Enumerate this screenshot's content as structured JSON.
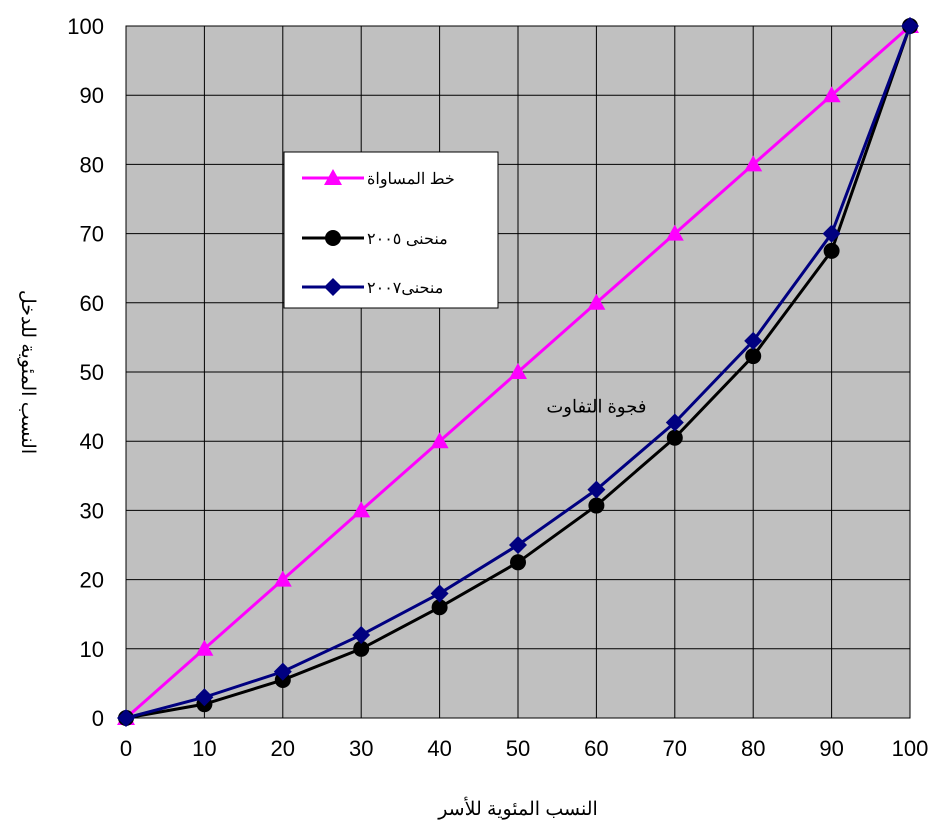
{
  "chart_data": {
    "type": "line",
    "title": "",
    "xlabel": "النسب المئوية للأسر",
    "ylabel": "النسب المئوية للدخل",
    "xlim": [
      0,
      100
    ],
    "ylim": [
      0,
      100
    ],
    "grid": true,
    "x_ticks": [
      0,
      10,
      20,
      30,
      40,
      50,
      60,
      70,
      80,
      90,
      100
    ],
    "y_ticks": [
      0,
      10,
      20,
      30,
      40,
      50,
      60,
      70,
      80,
      90,
      100
    ],
    "x": [
      0,
      10,
      20,
      30,
      40,
      50,
      60,
      70,
      80,
      90,
      100
    ],
    "series": [
      {
        "name": "خط المساواة",
        "values": [
          0,
          10,
          20,
          30,
          40,
          50,
          60,
          70,
          80,
          90,
          100
        ],
        "color": "#ff00ff",
        "marker": "triangle"
      },
      {
        "name": "منحنى ٢٠٠٥",
        "values": [
          0,
          2,
          5.5,
          10,
          16,
          22.5,
          30.7,
          40.5,
          52.3,
          67.5,
          100
        ],
        "color": "#000000",
        "marker": "circle"
      },
      {
        "name": "منحنى٢٠٠٧",
        "values": [
          0,
          3,
          6.7,
          12,
          18,
          25,
          33,
          42.7,
          54.5,
          70,
          100
        ],
        "color": "#000080",
        "marker": "diamond"
      }
    ],
    "legend_position": "top-left",
    "annotations": [
      {
        "text": "فجوة التفاوت",
        "x": 60,
        "y": 45
      }
    ],
    "plot_background": "#c0c0c0"
  }
}
